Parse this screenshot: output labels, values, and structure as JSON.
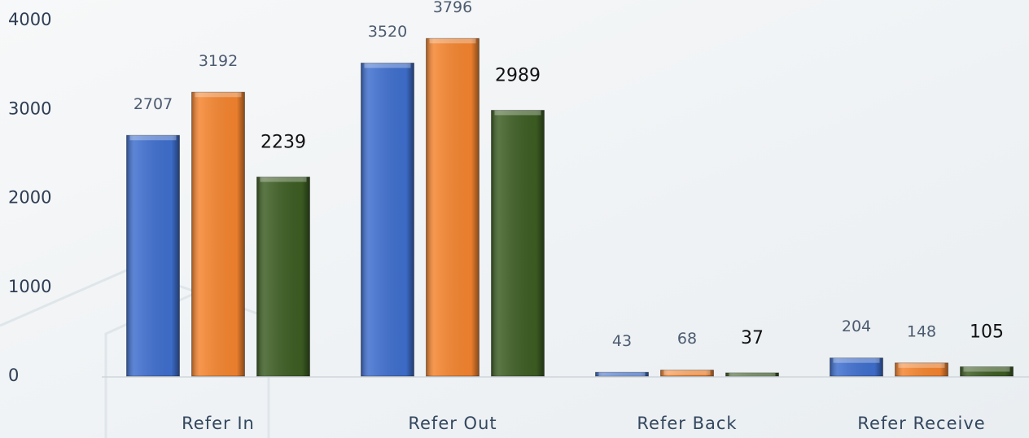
{
  "chart_data": {
    "type": "bar",
    "categories": [
      "Refer In",
      "Refer Out",
      "Refer Back",
      "Refer Receive"
    ],
    "series": [
      {
        "color": "#3f6fcf",
        "values": [
          2707,
          3520,
          43,
          204
        ]
      },
      {
        "color": "#f5852f",
        "values": [
          3192,
          3796,
          68,
          148
        ]
      },
      {
        "color": "#3d5e23",
        "values": [
          2239,
          2989,
          37,
          105
        ]
      }
    ],
    "ylim": [
      0,
      4000
    ],
    "yticks": [
      0,
      1000,
      2000,
      3000,
      4000
    ],
    "grid": false
  }
}
